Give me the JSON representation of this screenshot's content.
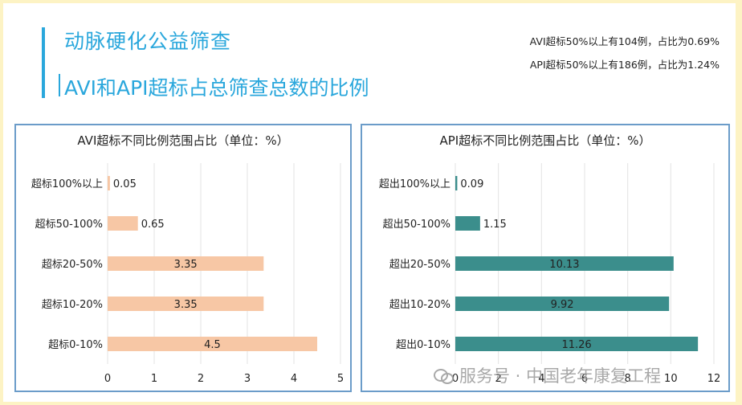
{
  "header": {
    "title": "动脉硬化公益筛查",
    "subtitle": "AVI和API超标占总筛查总数的比例",
    "notes": [
      "AVI超标50%以上有104例，占比为0.69%",
      "API超标50%以上有186例，占比为1.24%"
    ]
  },
  "watermark": "服务号 · 中国老年康复工程",
  "colors": {
    "title": "#2aa7dc",
    "avi_bar": "#f7c7a5",
    "api_bar": "#3b8e8c",
    "panel_border": "#6b9cc9"
  },
  "chart_data": [
    {
      "type": "bar",
      "orientation": "horizontal",
      "title": "AVI超标不同比例范围占比（单位：%）",
      "categories": [
        "超标100%以上",
        "超标50-100%",
        "超标20-50%",
        "超标10-20%",
        "超标0-10%"
      ],
      "values": [
        0.05,
        0.65,
        3.35,
        3.35,
        4.5
      ],
      "data_labels": [
        "0.05",
        "0.65",
        "3.35",
        "3.35",
        "4.5"
      ],
      "xlim": [
        0,
        5
      ],
      "xticks": [
        "0",
        "1",
        "2",
        "3",
        "4",
        "5"
      ],
      "grid": true
    },
    {
      "type": "bar",
      "orientation": "horizontal",
      "title": "API超标不同比例范围占比（单位：%）",
      "categories": [
        "超出100%以上",
        "超出50-100%",
        "超出20-50%",
        "超出10-20%",
        "超出0-10%"
      ],
      "values": [
        0.09,
        1.15,
        10.13,
        9.92,
        11.26
      ],
      "data_labels": [
        "0.09",
        "1.15",
        "10.13",
        "9.92",
        "11.26"
      ],
      "xlim": [
        0,
        12
      ],
      "xticks": [
        "0",
        "2",
        "4",
        "6",
        "8",
        "10",
        "12"
      ],
      "grid": true
    }
  ]
}
